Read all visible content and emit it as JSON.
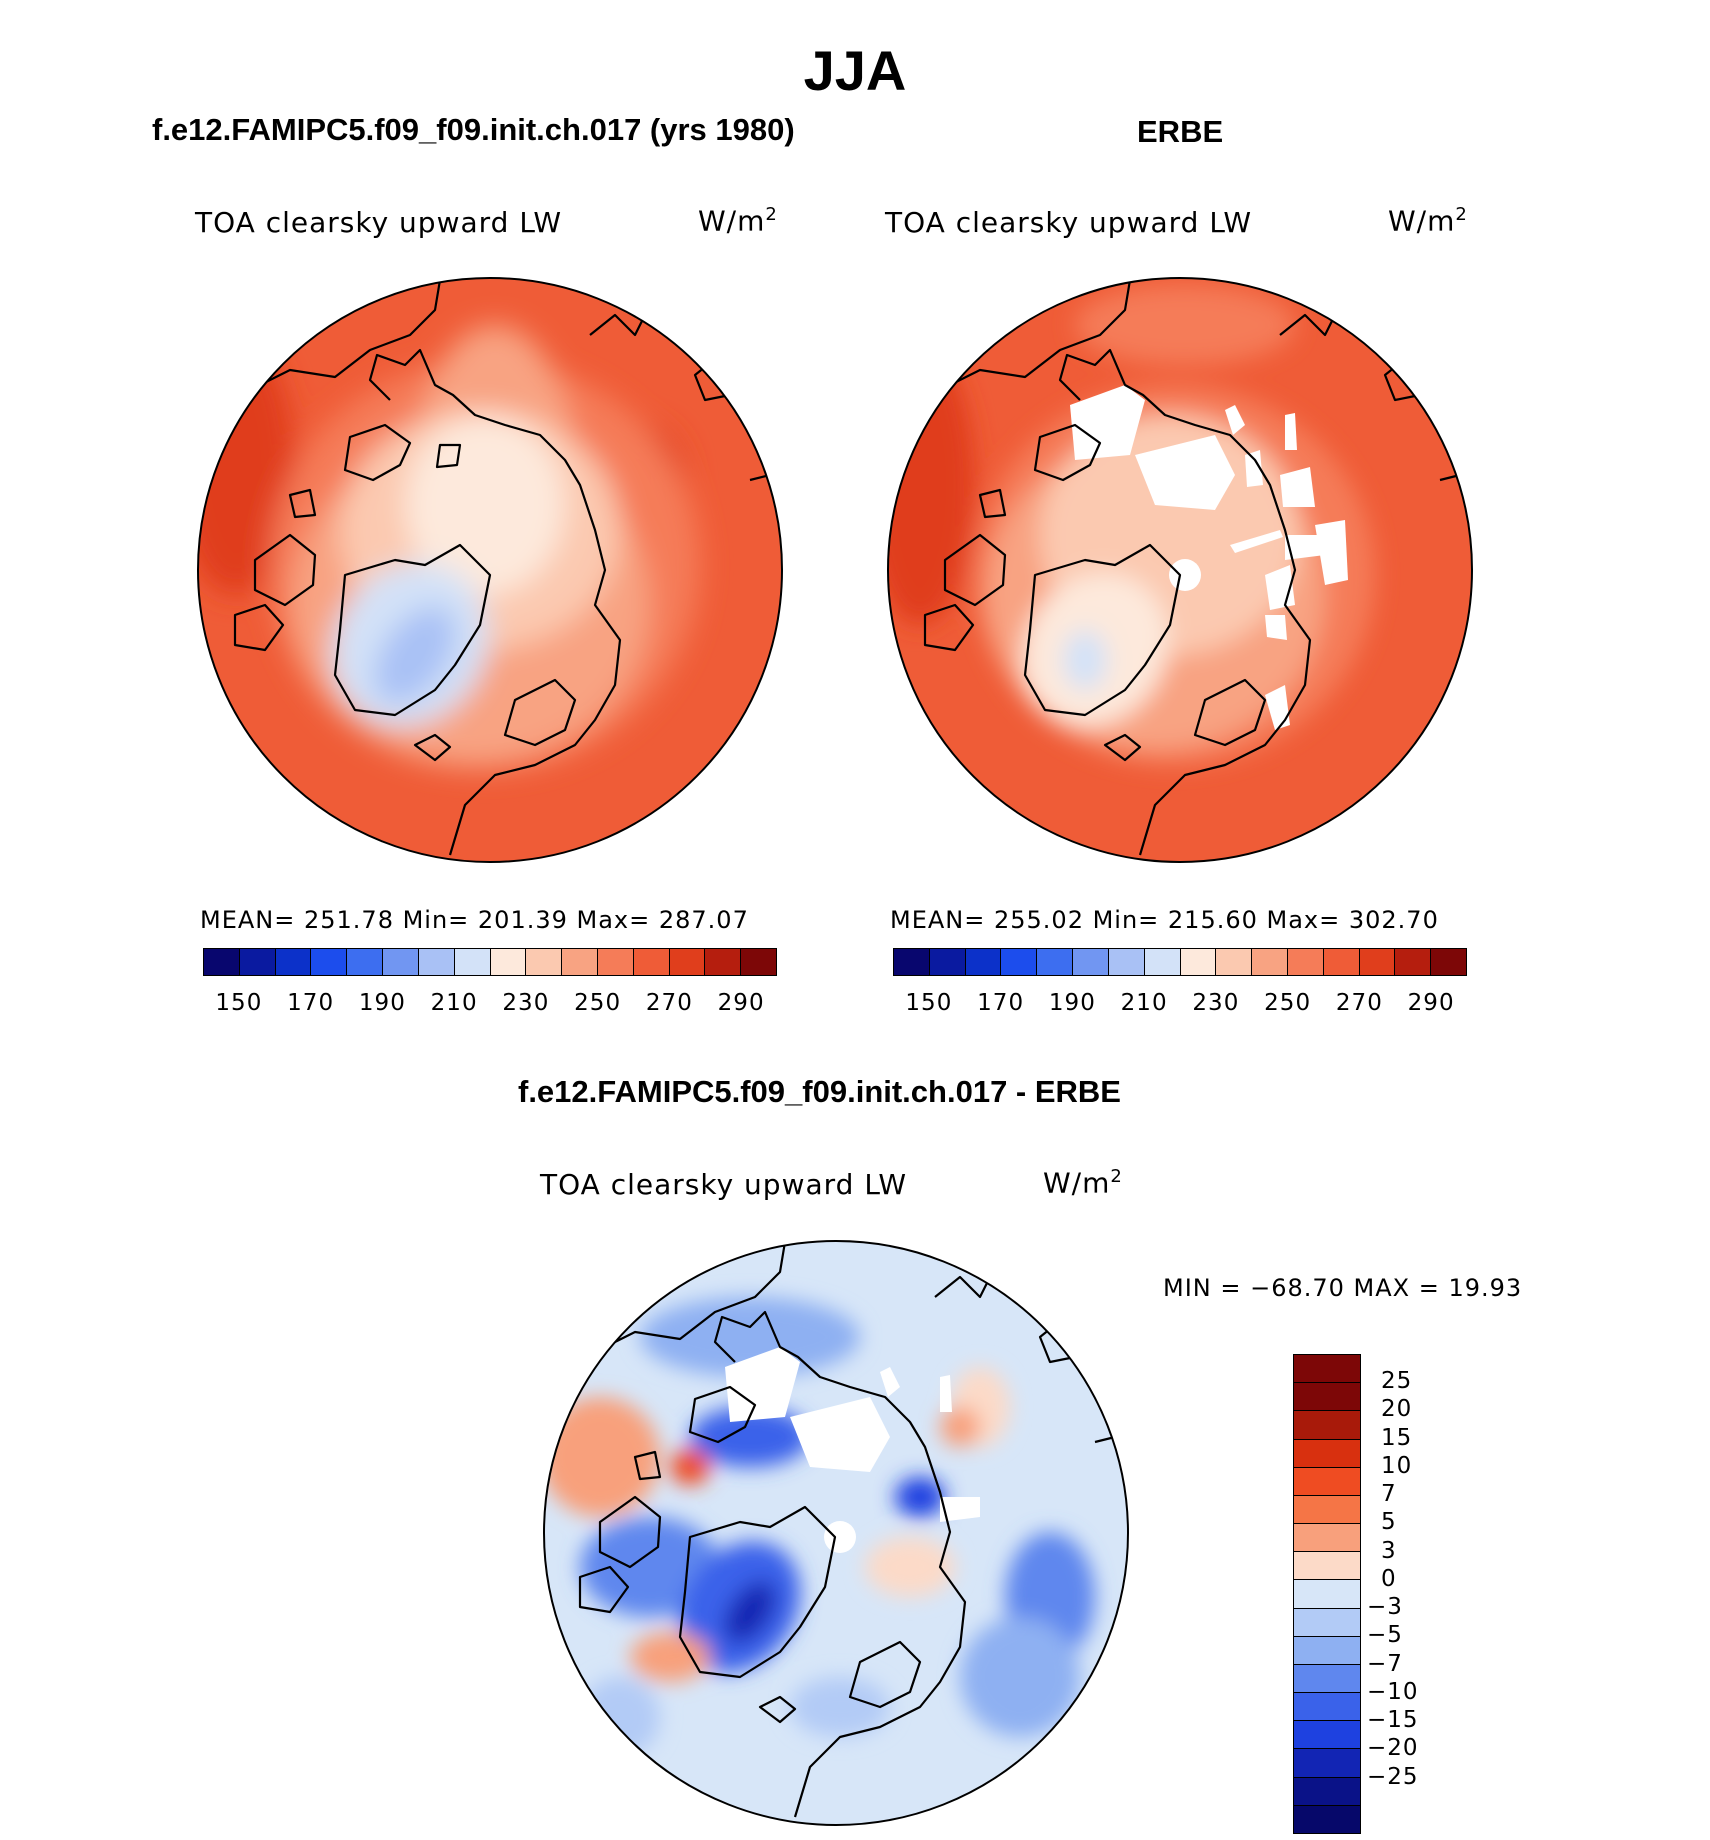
{
  "title": "JJA",
  "panels": [
    {
      "title": "f.e12.FAMIPC5.f09_f09.init.ch.017 (yrs 1980)",
      "variable": "TOA clearsky upward LW",
      "units_base": "W/m",
      "units_exp": "2",
      "stats": "MEAN= 251.78   Min= 201.39   Max= 287.07"
    },
    {
      "title": "ERBE",
      "variable": "TOA clearsky upward LW",
      "units_base": "W/m",
      "units_exp": "2",
      "stats": "MEAN= 255.02   Min= 215.60   Max= 302.70"
    }
  ],
  "diff_panel": {
    "title": "f.e12.FAMIPC5.f09_f09.init.ch.017 - ERBE",
    "variable": "TOA clearsky upward LW",
    "units_base": "W/m",
    "units_exp": "2",
    "stats": "MIN = −68.70 MAX =   19.93"
  },
  "colorbar_abs": {
    "colors": [
      "#08066e",
      "#0a1aa0",
      "#0c31c9",
      "#1c4ded",
      "#3d6ef0",
      "#7196f2",
      "#a9c1f5",
      "#d3e2f8",
      "#fde9dc",
      "#fbc9b0",
      "#f8a382",
      "#f57c58",
      "#ef5c37",
      "#e03e1c",
      "#b51e0e",
      "#7d0707"
    ],
    "tick_labels": [
      "150",
      "170",
      "190",
      "210",
      "230",
      "250",
      "270",
      "290"
    ]
  },
  "colorbar_diff": {
    "colors": [
      "#7d0707",
      "#a81a0a",
      "#d8300f",
      "#ef4c22",
      "#f57546",
      "#f8a07c",
      "#fcdac8",
      "#d7e6f8",
      "#b2cbf6",
      "#8eb0f2",
      "#5f87ee",
      "#3a62ea",
      "#1e41e0",
      "#1225b4",
      "#0a1288"
    ],
    "tick_labels": [
      "25",
      "20",
      "15",
      "10",
      "7",
      "5",
      "3",
      "0",
      "−3",
      "−5",
      "−7",
      "−10",
      "−15",
      "−20",
      "−25"
    ]
  },
  "chart_data": {
    "type": "heatmap",
    "projection": "north polar stereographic",
    "maps": [
      {
        "name": "f.e12.FAMIPC5.f09_f09.init.ch.017 (yrs 1980)",
        "mean": 251.78,
        "min": 201.39,
        "max": 287.07
      },
      {
        "name": "ERBE",
        "mean": 255.02,
        "min": 215.6,
        "max": 302.7
      },
      {
        "name": "f.e12.FAMIPC5.f09_f09.init.ch.017 - ERBE",
        "min": -68.7,
        "max": 19.93
      }
    ],
    "colorbar_abs_levels": [
      150,
      170,
      190,
      210,
      230,
      250,
      270,
      290
    ],
    "colorbar_diff_levels": [
      25,
      20,
      15,
      10,
      7,
      5,
      3,
      0,
      -3,
      -5,
      -7,
      -10,
      -15,
      -20,
      -25
    ]
  }
}
